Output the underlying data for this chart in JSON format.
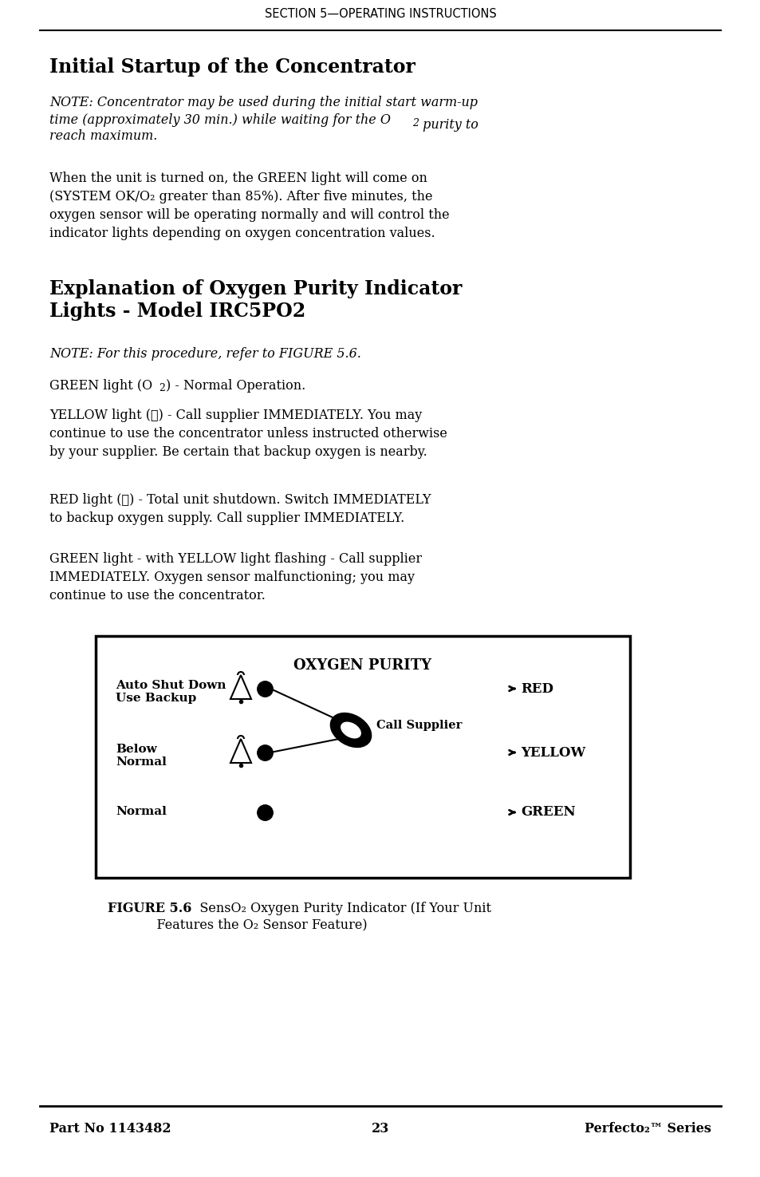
{
  "page_bg": "#ffffff",
  "header_text": "SECTION 5—OPERATING INSTRUCTIONS",
  "title1": "Initial Startup of the Concentrator",
  "note1": "NOTE: Concentrator may be used during the initial start warm-up\ntime (approximately 30 min.) while waiting for the O",
  "note1_sub": "2",
  "note1_end": " purity to\nreach maximum.",
  "para1": "When the unit is turned on, the GREEN light will come on\n(SYSTEM OK/O₂ greater than 85%). After five minutes, the\noxygen sensor will be operating normally and will control the\nindicator lights depending on oxygen concentration values.",
  "title2": "Explanation of Oxygen Purity Indicator\nLights - Model IRC5PO2",
  "note2": "NOTE: For this procedure, refer to FIGURE 5.6.",
  "green_line": "GREEN light (O",
  "green_line_sub": "2",
  "green_line_end": ") - Normal Operation.",
  "yellow_line": "YELLOW light (⚠) - Call supplier IMMEDIATELY. You may\ncontinue to use the concentrator unless instructed otherwise\nby your supplier. Be certain that backup oxygen is nearby.",
  "red_line": "RED light (⚠) - Total unit shutdown. Switch IMMEDIATELY\nto backup oxygen supply. Call supplier IMMEDIATELY.",
  "green_yellow_line": "GREEN light - with YELLOW light flashing - Call supplier\nIMMEDIATELY. Oxygen sensor malfunctioning; you may\ncontinue to use the concentrator.",
  "fig_title": "OXYGEN PURITY",
  "fig_label1_line1": "Auto Shut Down",
  "fig_label1_line2": "Use Backup",
  "fig_label2": "Below\nNormal",
  "fig_label3": "Normal",
  "fig_red": "RED",
  "fig_yellow": "YELLOW",
  "fig_green": "GREEN",
  "fig_call": "Call Supplier",
  "figure_caption_bold": "FIGURE 5.6",
  "figure_caption_rest": "   SensO₂ Oxygen Purity Indicator (If Your Unit\n            Features the O₂ Sensor Feature)",
  "footer_left": "Part No 1143482",
  "footer_center": "23",
  "footer_right": "Perfecto₂™ Series"
}
